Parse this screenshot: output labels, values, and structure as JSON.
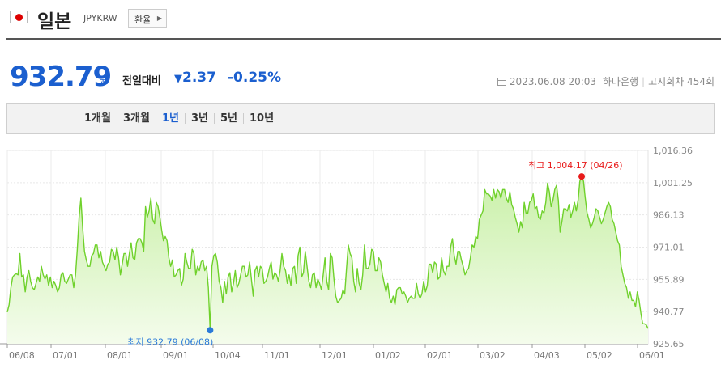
{
  "header": {
    "country": "일본",
    "code": "JPYKRW",
    "convert_button": "환율"
  },
  "price": {
    "value": "932.79",
    "unit": "원",
    "compare_label": "전일대비",
    "change": "2.37",
    "change_pct": "-0.25%",
    "direction": "down",
    "meta_datetime": "2023.06.08 20:03",
    "meta_bank": "하나은행",
    "meta_round": "고시회차 454회"
  },
  "periods": {
    "tabs": [
      "1개월",
      "3개월",
      "1년",
      "3년",
      "5년",
      "10년"
    ],
    "active": "1년"
  },
  "colors": {
    "accent": "#1b5fcf",
    "line": "#6fd12b",
    "max_marker": "#e81a1a",
    "min_marker": "#2a7ad9"
  },
  "chart_data": {
    "type": "area",
    "x_ticks": [
      "06/08",
      "07/01",
      "08/01",
      "09/01",
      "10/04",
      "11/01",
      "12/01",
      "01/02",
      "02/01",
      "03/02",
      "04/03",
      "05/02",
      "06/01"
    ],
    "y_ticks": [
      "1,016.36",
      "1,001.25",
      "986.13",
      "971.01",
      "955.89",
      "940.77",
      "925.65"
    ],
    "ylim": [
      925.65,
      1016.36
    ],
    "grid": true,
    "max_label": "최고 1,004.17 (04/26)",
    "min_label": "최저 932.79 (06/08)",
    "series": [
      {
        "values": [
          940.5,
          944,
          952,
          957,
          958,
          958.5,
          958,
          968,
          957,
          958,
          950,
          957,
          960,
          955,
          952,
          951,
          954,
          957,
          955,
          962,
          958,
          956,
          958,
          953,
          957,
          952,
          955,
          953,
          950,
          952,
          958,
          959,
          955,
          954,
          956,
          958,
          958,
          952,
          958,
          970,
          985,
          994,
          980,
          969,
          965,
          962,
          962,
          967,
          968,
          972,
          972,
          966,
          969,
          964,
          962,
          960,
          963,
          964,
          970,
          969,
          965,
          971,
          966,
          958,
          963,
          968,
          968,
          962,
          968,
          973,
          966,
          965,
          973,
          975,
          975,
          973,
          969,
          990,
          985,
          988,
          994,
          984,
          982,
          992,
          990,
          985,
          979,
          974,
          976,
          974,
          966,
          962,
          965,
          957,
          958,
          960,
          961,
          953,
          956,
          968,
          964,
          961,
          961,
          970,
          968,
          958,
          962,
          960,
          964,
          965,
          960,
          962,
          952,
          932,
          962,
          967,
          968,
          964,
          955,
          952,
          945,
          955,
          949,
          957,
          959,
          950,
          954,
          960,
          952,
          954,
          958,
          962,
          962,
          957,
          958,
          964,
          956,
          948,
          960,
          962,
          957,
          962,
          961,
          954,
          955,
          957,
          961,
          964,
          956,
          959,
          958,
          955,
          960,
          968,
          962,
          960,
          954,
          958,
          953,
          961,
          962,
          954,
          967,
          971,
          957,
          959,
          969,
          962,
          955,
          952,
          958,
          959,
          952,
          956,
          954,
          951,
          958,
          966,
          955,
          951,
          968,
          966,
          956,
          948,
          945,
          946,
          947,
          951,
          949,
          961,
          972,
          968,
          966,
          955,
          950,
          961,
          954,
          951,
          958,
          972,
          961,
          961,
          963,
          970,
          969,
          960,
          960,
          966,
          964,
          958,
          954,
          950,
          954,
          947,
          945,
          948,
          944,
          951,
          952,
          952,
          949,
          950,
          948,
          945,
          947,
          948,
          947,
          947,
          954,
          949,
          947,
          949,
          955,
          950,
          953,
          963,
          963,
          959,
          964,
          963,
          956,
          957,
          966,
          960,
          958,
          962,
          962,
          971,
          975,
          967,
          963,
          969,
          969,
          965,
          962,
          958,
          960,
          961,
          966,
          972,
          971,
          976,
          975,
          984,
          986,
          988,
          998,
          996,
          996,
          995,
          993,
          998,
          994,
          998,
          997,
          994,
          998,
          998,
          994,
          992,
          997,
          991,
          989,
          985,
          982,
          978,
          983,
          980,
          992,
          987,
          987,
          992,
          993,
          996,
          989,
          990,
          985,
          984,
          988,
          987,
          992,
          1001,
          997,
          990,
          993,
          998,
          1000,
          993,
          978,
          983,
          989,
          989,
          988,
          991,
          985,
          988,
          992,
          988,
          993,
          1002,
          1004.17,
          1002,
          994,
          987,
          984,
          980,
          982,
          985,
          989,
          988,
          985,
          982,
          984,
          987,
          990,
          992,
          990,
          984,
          982,
          978,
          974,
          972,
          962,
          958,
          954,
          952,
          947,
          950,
          946,
          946,
          943,
          950,
          946,
          940,
          935,
          935,
          934.5,
          932.79
        ]
      }
    ]
  }
}
